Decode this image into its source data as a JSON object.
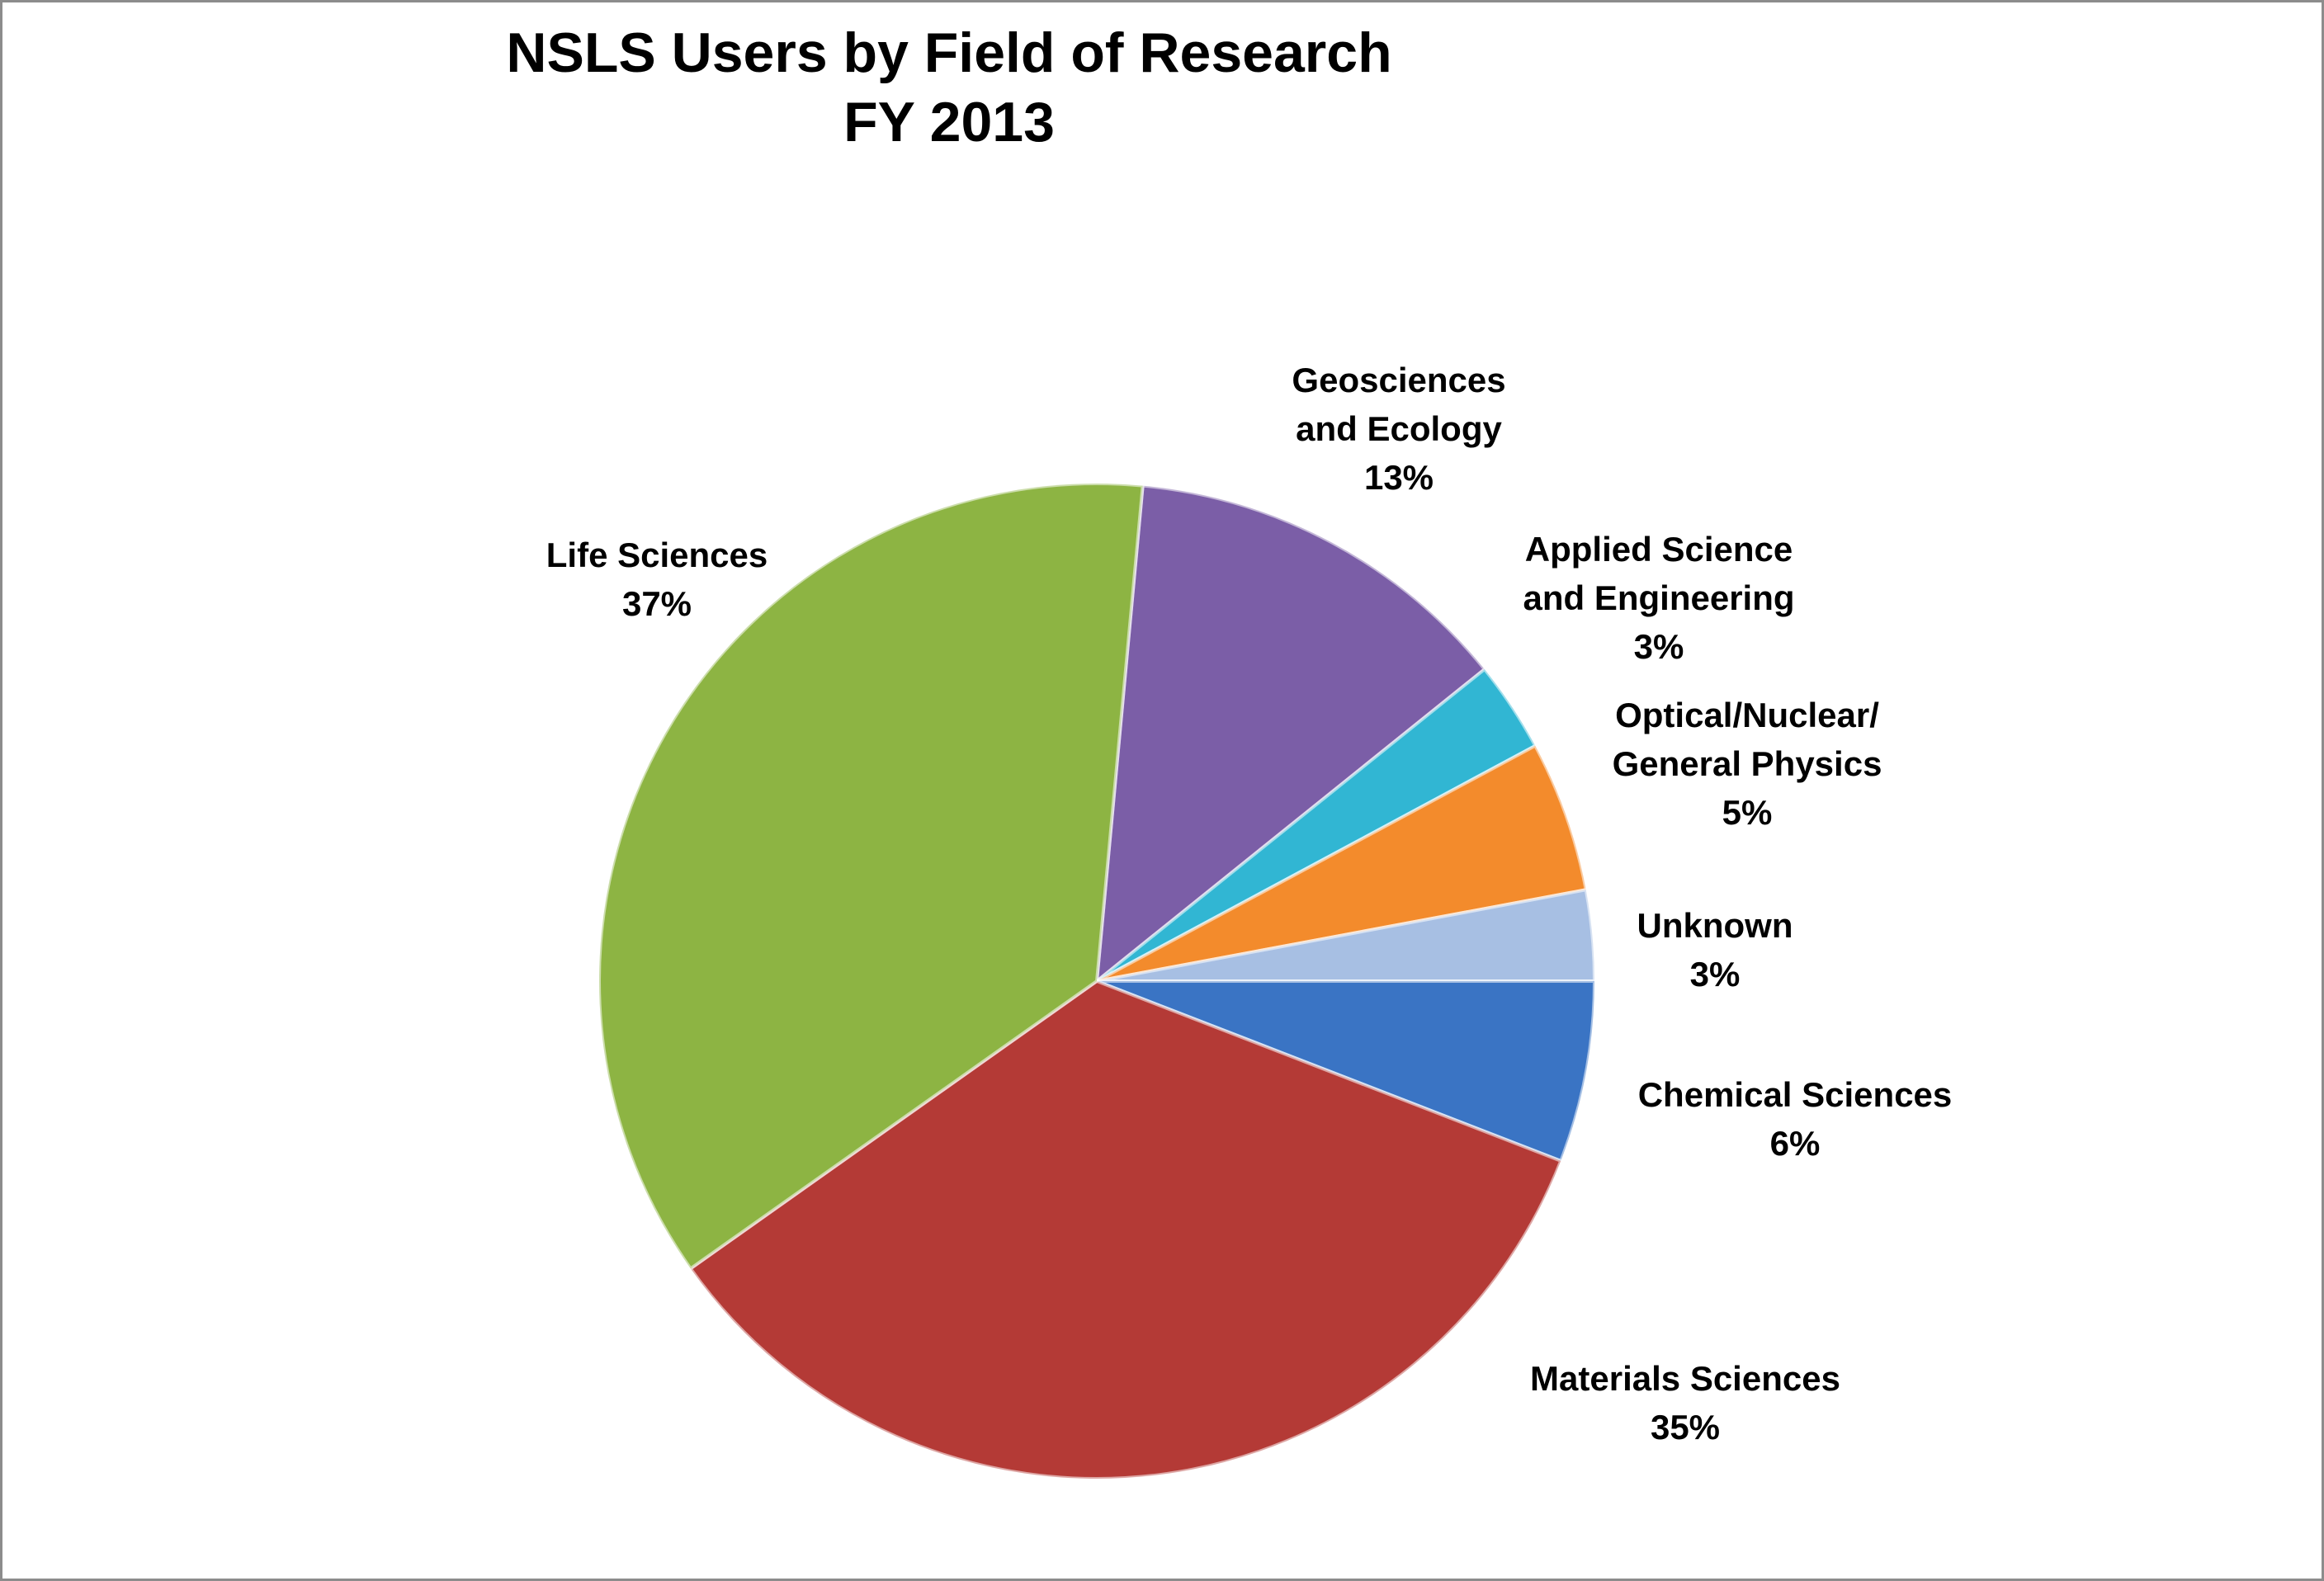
{
  "chart_data": {
    "type": "pie",
    "title": "NSLS Users by Field of Research",
    "subtitle": "FY 2013",
    "categories": [
      "Geosciences\nand Ecology",
      "Applied Science\nand Engineering",
      "Optical/Nuclear/\nGeneral Physics",
      "Unknown",
      "Chemical Sciences",
      "Materials Sciences",
      "Life Sciences"
    ],
    "values": [
      13,
      3,
      5,
      3,
      6,
      35,
      37
    ],
    "value_labels": [
      "13%",
      "3%",
      "5%",
      "3%",
      "6%",
      "35%",
      "37%"
    ],
    "colors": [
      "#7b5ea7",
      "#31b6d3",
      "#f38b2c",
      "#a7bfe3",
      "#3a74c4",
      "#b43a36",
      "#8db443"
    ]
  }
}
